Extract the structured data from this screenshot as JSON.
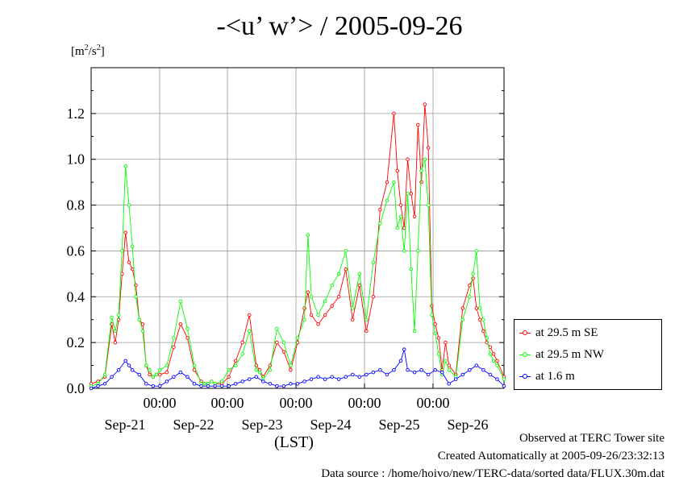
{
  "title": "-<u’ w’> / 2005-09-26",
  "units": {
    "base": "[m",
    "exp": "2",
    "mid": "/s",
    "exp2": "2",
    "end": "]"
  },
  "xlabel": "(LST)",
  "footer": {
    "line1": "Observed at TERC Tower site",
    "line2": "Created Automatically at 2005-09-26/23:32:13",
    "line3": "Data source : /home/hoivo/new/TERC-data/sorted  data/FLUX.30m.dat"
  },
  "chart_data": {
    "type": "line",
    "title": "-<u’ w’> / 2005-09-26",
    "ylabel": "[m2/s2]",
    "xlabel": "(LST)",
    "ylim": [
      0,
      1.4
    ],
    "yticks": [
      "0.0",
      "0.2",
      "0.4",
      "0.6",
      "0.8",
      "1.0",
      "1.2"
    ],
    "xlim": [
      0,
      6
    ],
    "x_tick_labels_time": [
      "00:00",
      "00:00",
      "00:00",
      "00:00",
      "00:00"
    ],
    "x_tick_labels_date": [
      "Sep-21",
      "Sep-22",
      "Sep-23",
      "Sep-24",
      "Sep-25",
      "Sep-26"
    ],
    "grid": true,
    "legend_position": "right",
    "x_units": "days since first plotted midnight-of-Sep-20",
    "series": [
      {
        "name": "at 29.5 m SE",
        "color": "#ff0000",
        "x": [
          0.0,
          0.1,
          0.2,
          0.3,
          0.35,
          0.4,
          0.45,
          0.5,
          0.55,
          0.6,
          0.65,
          0.7,
          0.75,
          0.8,
          0.85,
          0.9,
          0.95,
          1.0,
          1.1,
          1.2,
          1.3,
          1.4,
          1.5,
          1.6,
          1.65,
          1.7,
          1.75,
          1.8,
          1.9,
          2.0,
          2.1,
          2.2,
          2.3,
          2.4,
          2.45,
          2.5,
          2.6,
          2.7,
          2.8,
          2.9,
          3.0,
          3.1,
          3.15,
          3.2,
          3.3,
          3.4,
          3.5,
          3.6,
          3.7,
          3.8,
          3.9,
          4.0,
          4.1,
          4.2,
          4.3,
          4.4,
          4.45,
          4.5,
          4.55,
          4.6,
          4.65,
          4.7,
          4.75,
          4.8,
          4.85,
          4.9,
          4.95,
          5.0,
          5.05,
          5.1,
          5.15,
          5.2,
          5.3,
          5.4,
          5.5,
          5.55,
          5.6,
          5.65,
          5.7,
          5.75,
          5.8,
          5.85,
          5.9,
          6.0
        ],
        "y": [
          0.02,
          0.03,
          0.05,
          0.28,
          0.2,
          0.3,
          0.5,
          0.68,
          0.55,
          0.52,
          0.45,
          0.3,
          0.28,
          0.1,
          0.06,
          0.05,
          0.06,
          0.06,
          0.07,
          0.18,
          0.28,
          0.22,
          0.08,
          0.03,
          0.02,
          0.02,
          0.03,
          0.02,
          0.02,
          0.05,
          0.12,
          0.2,
          0.32,
          0.1,
          0.08,
          0.05,
          0.1,
          0.2,
          0.16,
          0.08,
          0.2,
          0.35,
          0.42,
          0.32,
          0.28,
          0.32,
          0.36,
          0.4,
          0.52,
          0.3,
          0.45,
          0.25,
          0.4,
          0.78,
          0.9,
          1.2,
          0.95,
          0.8,
          0.7,
          1.0,
          0.85,
          0.75,
          1.15,
          0.9,
          1.24,
          1.05,
          0.36,
          0.28,
          0.22,
          0.08,
          0.2,
          0.1,
          0.06,
          0.35,
          0.45,
          0.48,
          0.35,
          0.3,
          0.25,
          0.2,
          0.18,
          0.15,
          0.12,
          0.05
        ]
      },
      {
        "name": "at 29.5 m NW",
        "color": "#00ff00",
        "x": [
          0.0,
          0.1,
          0.2,
          0.3,
          0.35,
          0.4,
          0.45,
          0.5,
          0.55,
          0.6,
          0.65,
          0.7,
          0.75,
          0.8,
          0.85,
          0.9,
          0.95,
          1.0,
          1.1,
          1.2,
          1.3,
          1.4,
          1.5,
          1.6,
          1.65,
          1.7,
          1.75,
          1.8,
          1.9,
          2.0,
          2.1,
          2.2,
          2.3,
          2.4,
          2.45,
          2.5,
          2.6,
          2.7,
          2.8,
          2.9,
          3.0,
          3.1,
          3.15,
          3.2,
          3.3,
          3.4,
          3.5,
          3.6,
          3.7,
          3.8,
          3.9,
          4.0,
          4.1,
          4.2,
          4.3,
          4.4,
          4.45,
          4.5,
          4.55,
          4.6,
          4.65,
          4.7,
          4.75,
          4.8,
          4.85,
          4.9,
          4.95,
          5.0,
          5.05,
          5.1,
          5.15,
          5.2,
          5.3,
          5.4,
          5.5,
          5.55,
          5.6,
          5.65,
          5.7,
          5.75,
          5.8,
          5.85,
          5.9,
          6.0
        ],
        "y": [
          0.01,
          0.02,
          0.06,
          0.31,
          0.25,
          0.32,
          0.6,
          0.97,
          0.8,
          0.62,
          0.4,
          0.3,
          0.25,
          0.1,
          0.08,
          0.05,
          0.06,
          0.08,
          0.1,
          0.22,
          0.38,
          0.26,
          0.1,
          0.02,
          0.02,
          0.02,
          0.03,
          0.02,
          0.03,
          0.08,
          0.1,
          0.15,
          0.25,
          0.08,
          0.07,
          0.04,
          0.08,
          0.26,
          0.2,
          0.1,
          0.22,
          0.3,
          0.67,
          0.4,
          0.32,
          0.38,
          0.45,
          0.5,
          0.6,
          0.35,
          0.5,
          0.3,
          0.55,
          0.72,
          0.82,
          0.9,
          0.7,
          0.75,
          0.6,
          0.85,
          0.52,
          0.25,
          0.6,
          0.95,
          1.0,
          0.8,
          0.32,
          0.24,
          0.15,
          0.06,
          0.12,
          0.08,
          0.05,
          0.3,
          0.4,
          0.5,
          0.6,
          0.35,
          0.3,
          0.22,
          0.15,
          0.12,
          0.1,
          0.04
        ]
      },
      {
        "name": "at 1.6 m",
        "color": "#0000ff",
        "x": [
          0.0,
          0.1,
          0.2,
          0.3,
          0.4,
          0.5,
          0.55,
          0.6,
          0.7,
          0.8,
          0.9,
          1.0,
          1.1,
          1.2,
          1.3,
          1.4,
          1.5,
          1.6,
          1.7,
          1.8,
          1.9,
          2.0,
          2.1,
          2.2,
          2.3,
          2.4,
          2.5,
          2.6,
          2.7,
          2.8,
          2.9,
          3.0,
          3.1,
          3.2,
          3.3,
          3.4,
          3.5,
          3.6,
          3.7,
          3.8,
          3.9,
          4.0,
          4.1,
          4.2,
          4.3,
          4.4,
          4.5,
          4.55,
          4.6,
          4.7,
          4.8,
          4.9,
          5.0,
          5.1,
          5.2,
          5.3,
          5.4,
          5.5,
          5.6,
          5.7,
          5.8,
          5.9,
          6.0
        ],
        "y": [
          0.0,
          0.01,
          0.02,
          0.05,
          0.08,
          0.12,
          0.1,
          0.08,
          0.06,
          0.02,
          0.01,
          0.01,
          0.03,
          0.05,
          0.07,
          0.05,
          0.02,
          0.01,
          0.01,
          0.01,
          0.01,
          0.01,
          0.02,
          0.03,
          0.04,
          0.05,
          0.03,
          0.02,
          0.01,
          0.01,
          0.02,
          0.02,
          0.03,
          0.04,
          0.05,
          0.04,
          0.05,
          0.04,
          0.05,
          0.06,
          0.05,
          0.06,
          0.07,
          0.08,
          0.06,
          0.08,
          0.12,
          0.17,
          0.08,
          0.07,
          0.08,
          0.06,
          0.08,
          0.07,
          0.02,
          0.04,
          0.06,
          0.08,
          0.1,
          0.08,
          0.06,
          0.04,
          0.01
        ]
      }
    ]
  }
}
